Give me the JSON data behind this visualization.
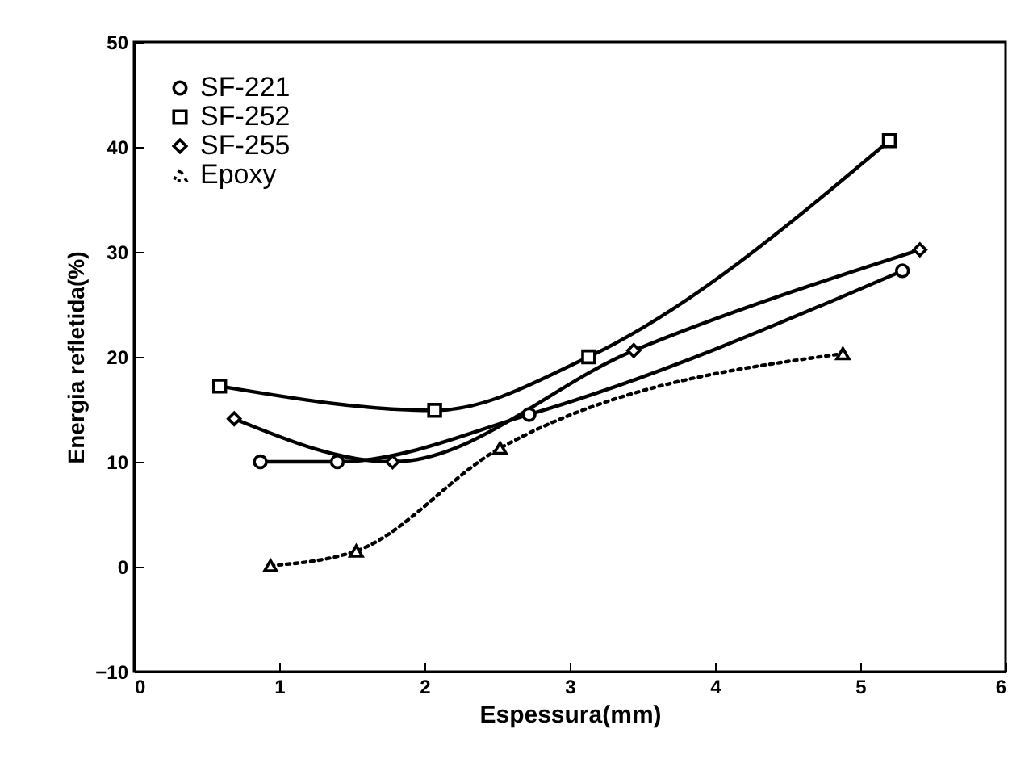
{
  "chart_data": {
    "type": "line",
    "xlabel": "Espessura(mm)",
    "ylabel": "Energia refletida(%)",
    "xlim": [
      0,
      6
    ],
    "ylim": [
      -10,
      50
    ],
    "xticks": [
      0,
      1,
      2,
      3,
      4,
      5,
      6
    ],
    "yticks": [
      -10,
      0,
      10,
      20,
      30,
      40,
      50
    ],
    "legend": "top left",
    "series": [
      {
        "name": "SF-221",
        "color": "#000000",
        "marker": "circle",
        "line_style": "solid",
        "x": [
          0.87,
          1.4,
          2.72,
          5.29
        ],
        "values": [
          10,
          10,
          14.5,
          28.2
        ]
      },
      {
        "name": "SF-252",
        "color": "#000000",
        "marker": "square",
        "line_style": "solid",
        "x": [
          0.59,
          2.07,
          3.13,
          5.2
        ],
        "values": [
          17.2,
          14.9,
          20,
          40.6
        ]
      },
      {
        "name": "SF-255",
        "color": "#000000",
        "marker": "diamond",
        "line_style": "solid",
        "x": [
          0.69,
          1.78,
          3.44,
          5.41
        ],
        "values": [
          14.1,
          10,
          20.6,
          30.2
        ]
      },
      {
        "name": "Epoxy",
        "color": "#000000",
        "marker": "triangle",
        "line_style": "dotted",
        "x": [
          0.94,
          1.53,
          2.52,
          4.88
        ],
        "values": [
          0.1,
          1.5,
          11.3,
          20.3
        ]
      }
    ]
  }
}
